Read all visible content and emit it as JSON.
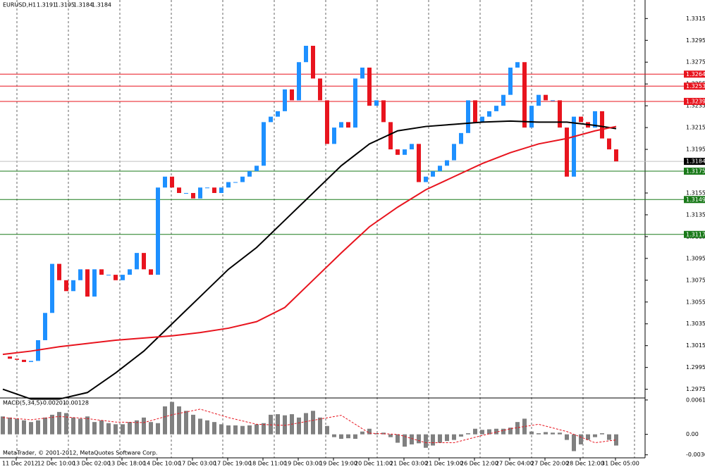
{
  "chart_data": {
    "type": "candlestick",
    "symbol": "EURUSD,H1",
    "quote": [
      1.3191,
      1.3195,
      1.3184,
      1.3184
    ],
    "footer": "MetaTrader, © 2001-2012, MetaQuotes Software Corp.",
    "ylim": [
      1.2967,
      1.3332
    ],
    "yticks": [
      1.3315,
      1.3295,
      1.3275,
      1.3255,
      1.3235,
      1.3215,
      1.3195,
      1.3175,
      1.3155,
      1.3135,
      1.3115,
      1.3095,
      1.3075,
      1.3055,
      1.3035,
      1.3015,
      1.2995,
      1.2975
    ],
    "time_labels": [
      "11 Dec 2012",
      "12 Dec 10:00",
      "13 Dec 02:00",
      "13 Dec 18:00",
      "14 Dec 10:00",
      "17 Dec 03:00",
      "17 Dec 19:00",
      "18 Dec 11:00",
      "19 Dec 03:00",
      "19 Dec 19:00",
      "20 Dec 11:00",
      "21 Dec 03:00",
      "21 Dec 19:00",
      "26 Dec 12:00",
      "27 Dec 04:00",
      "27 Dec 20:00",
      "28 Dec 12:00",
      "31 Dec 05:00"
    ],
    "up_color": "#1e90ff",
    "down_color": "#e8141e",
    "close": [
      1.3005,
      1.3003,
      1.3002,
      1.3,
      1.3001,
      1.302,
      1.3045,
      1.309,
      1.3075,
      1.3065,
      1.3075,
      1.3085,
      1.306,
      1.3085,
      1.308,
      1.308,
      1.3075,
      1.308,
      1.3085,
      1.31,
      1.3085,
      1.308,
      1.316,
      1.317,
      1.316,
      1.3155,
      1.3155,
      1.315,
      1.316,
      1.316,
      1.3155,
      1.316,
      1.3165,
      1.3165,
      1.317,
      1.3175,
      1.318,
      1.322,
      1.3225,
      1.323,
      1.325,
      1.324,
      1.3275,
      1.329,
      1.326,
      1.324,
      1.32,
      1.3215,
      1.322,
      1.3215,
      1.326,
      1.327,
      1.3235,
      1.324,
      1.322,
      1.3195,
      1.319,
      1.3195,
      1.32,
      1.3165,
      1.317,
      1.3175,
      1.318,
      1.3185,
      1.32,
      1.321,
      1.324,
      1.322,
      1.3225,
      1.323,
      1.3235,
      1.3245,
      1.327,
      1.3275,
      1.3215,
      1.3235,
      1.3245,
      1.324,
      1.324,
      1.3215,
      1.317,
      1.3225,
      1.322,
      1.3215,
      1.323,
      1.3205,
      1.3195,
      1.3184
    ],
    "ma_x": [
      0,
      4,
      8,
      12,
      16,
      20,
      24,
      28,
      32,
      36,
      40,
      44,
      48,
      52,
      56,
      60,
      64,
      68,
      72,
      76,
      80,
      84,
      87
    ],
    "ma_series": [
      {
        "color": "#000000",
        "values": [
          1.2975,
          1.2966,
          1.2966,
          1.2972,
          1.299,
          1.301,
          1.3035,
          1.306,
          1.3085,
          1.3105,
          1.313,
          1.3155,
          1.318,
          1.32,
          1.3212,
          1.3216,
          1.3218,
          1.322,
          1.3221,
          1.322,
          1.322,
          1.3217,
          1.3214
        ]
      },
      {
        "color": "#e8141e",
        "values": [
          1.3007,
          1.301,
          1.3014,
          1.3017,
          1.302,
          1.3022,
          1.3024,
          1.3027,
          1.3031,
          1.3037,
          1.305,
          1.3075,
          1.31,
          1.3124,
          1.3142,
          1.3158,
          1.317,
          1.3182,
          1.3192,
          1.32,
          1.3205,
          1.3212,
          1.3216
        ]
      }
    ],
    "levels": [
      {
        "value": 1.3264,
        "color": "#e8141e"
      },
      {
        "value": 1.3253,
        "color": "#e8141e"
      },
      {
        "value": 1.3239,
        "color": "#e8141e"
      },
      {
        "value": 1.3175,
        "color": "#1a7a1a"
      },
      {
        "value": 1.3149,
        "color": "#1a7a1a"
      },
      {
        "value": 1.3117,
        "color": "#1a7a1a"
      }
    ],
    "current_price": 1.3184,
    "macd": {
      "name": "MACD(5,34,5)",
      "readout": [
        -0.00201,
        -0.00128
      ],
      "ylim": [
        -0.0042,
        0.0065
      ],
      "yticks": [
        0.00614,
        {
          "value": 0,
          "label": "0.00"
        },
        -0.00366
      ],
      "histogram": [
        0.0032,
        0.003,
        0.0028,
        0.0025,
        0.0022,
        0.0025,
        0.003,
        0.0035,
        0.004,
        0.0038,
        0.003,
        0.0028,
        0.0032,
        0.0022,
        0.0025,
        0.002,
        0.0018,
        0.0018,
        0.0022,
        0.0025,
        0.003,
        0.0022,
        0.002,
        0.005,
        0.0058,
        0.005,
        0.0042,
        0.0035,
        0.0028,
        0.0025,
        0.0022,
        0.0018,
        0.0016,
        0.0016,
        0.0015,
        0.0016,
        0.0018,
        0.002,
        0.0035,
        0.0036,
        0.0034,
        0.0036,
        0.003,
        0.0038,
        0.0042,
        0.003,
        0.0015,
        -0.0005,
        -0.0008,
        -0.0007,
        -0.0008,
        0.0005,
        0.001,
        0.0002,
        0.0003,
        -0.0005,
        -0.0015,
        -0.0022,
        -0.0018,
        -0.0016,
        -0.0024,
        -0.002,
        -0.0015,
        -0.0012,
        -0.001,
        -0.0004,
        0.0002,
        0.001,
        0.0008,
        0.0009,
        0.001,
        0.001,
        0.0012,
        0.0022,
        0.0028,
        0.0005,
        0.0002,
        0.0004,
        0.0003,
        0.0003,
        -0.001,
        -0.003,
        -0.0018,
        -0.001,
        -0.0005,
        0.0002,
        -0.001,
        -0.002
      ],
      "signal": [
        0.003,
        0.0026,
        0.0032,
        0.0028,
        0.0022,
        0.0021,
        0.0035,
        0.0045,
        0.003,
        0.0018,
        0.0016,
        0.0025,
        0.0034,
        0.0002,
        0.0,
        -0.0015,
        -0.0015,
        -0.0002,
        0.001,
        0.0018,
        0.0005,
        -0.0015,
        -0.001
      ],
      "histogram_color": "#808080",
      "signal_color": "#e8141e"
    }
  }
}
